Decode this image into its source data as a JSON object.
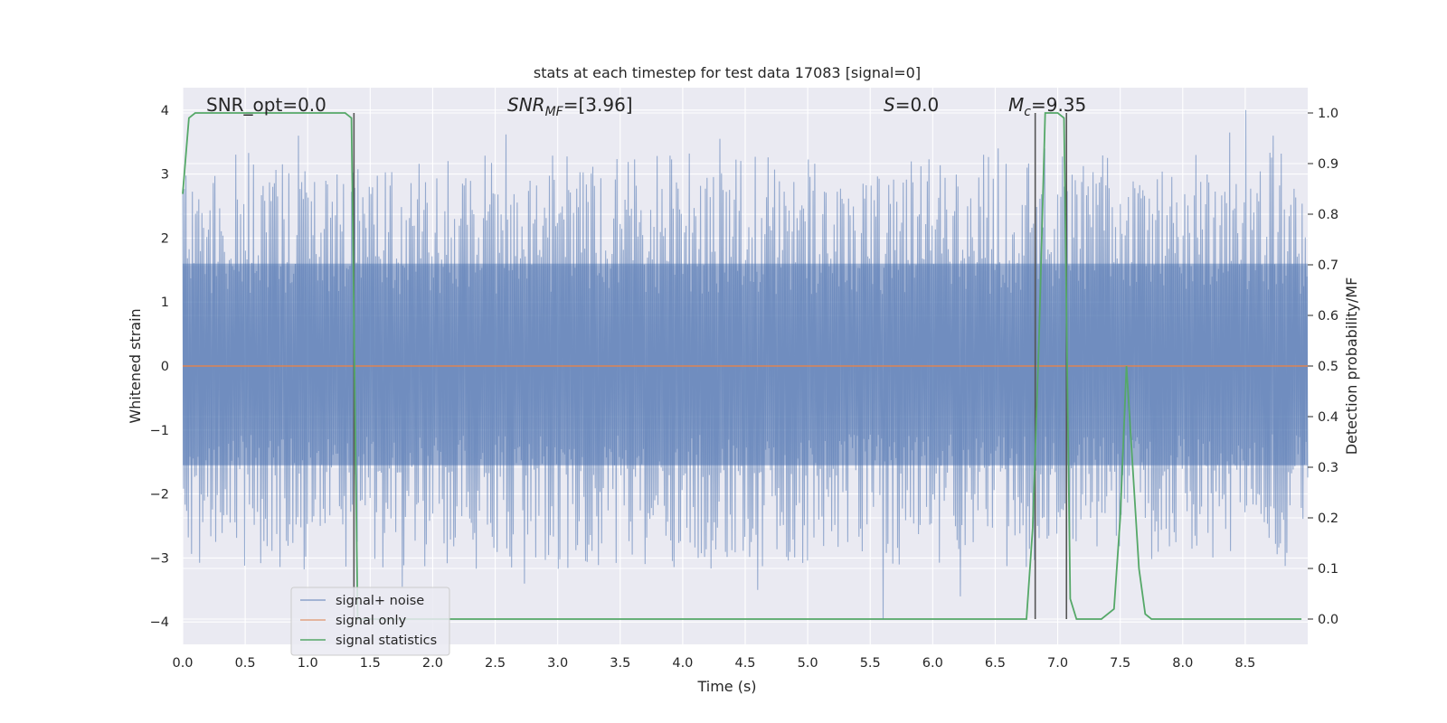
{
  "chart_data": {
    "type": "line",
    "title": "stats at each timestep for test data 17083 [signal=0]",
    "xlabel": "Time (s)",
    "ylabel_left": "Whitened strain",
    "ylabel_right": "Detection probability/MF",
    "xlim": [
      0.0,
      9.0
    ],
    "ylim_left": [
      -4.35,
      4.35
    ],
    "ylim_right": [
      -0.05,
      1.05
    ],
    "x_ticks": [
      "0.0",
      "0.5",
      "1.0",
      "1.5",
      "2.0",
      "2.5",
      "3.0",
      "3.5",
      "4.0",
      "4.5",
      "5.0",
      "5.5",
      "6.0",
      "6.5",
      "7.0",
      "7.5",
      "8.0",
      "8.5"
    ],
    "y_ticks_left": [
      "4",
      "3",
      "2",
      "1",
      "0",
      "−1",
      "−2",
      "−3",
      "−4"
    ],
    "y_ticks_right": [
      "1.0",
      "0.9",
      "0.8",
      "0.7",
      "0.6",
      "0.5",
      "0.4",
      "0.3",
      "0.2",
      "0.1",
      "0.0"
    ],
    "annotations": {
      "snr_opt": "SNR_opt=0.0",
      "snr_mf_main": "SNR",
      "snr_mf_sub": "MF",
      "snr_mf_value": "=[3.96]",
      "s_main": "S",
      "s_value": "=0.0",
      "mc_main": "M",
      "mc_sub": "c",
      "mc_value": "=9.35"
    },
    "legend": {
      "location": "lower-left",
      "entries": [
        "signal+ noise",
        "signal only",
        "signal statistics"
      ]
    },
    "series": [
      {
        "name": "signal+ noise",
        "axis": "left",
        "color": "#4c72b0",
        "description": "whitened strain noise, roughly uniform amplitude",
        "core_band": [
          -1.55,
          1.6
        ],
        "typical_peak_range": [
          2.0,
          3.0
        ],
        "sample_count": 1400,
        "seed": 17083,
        "spikes": [
          [
            0.92,
            3.6
          ],
          [
            2.58,
            3.62
          ],
          [
            4.3,
            3.55
          ],
          [
            5.6,
            -3.95
          ],
          [
            6.52,
            3.4
          ],
          [
            6.9,
            3.4
          ],
          [
            6.75,
            3.1
          ],
          [
            8.5,
            4.0
          ],
          [
            8.38,
            3.65
          ],
          [
            8.72,
            3.6
          ],
          [
            1.75,
            -3.45
          ],
          [
            2.73,
            -3.4
          ],
          [
            4.6,
            -3.5
          ],
          [
            6.22,
            -3.6
          ]
        ]
      },
      {
        "name": "signal only",
        "axis": "left",
        "color": "#dd8452",
        "x": [
          0.0,
          9.0
        ],
        "values": [
          0.0,
          0.0
        ]
      },
      {
        "name": "signal statistics",
        "axis": "right",
        "color": "#55a868",
        "x": [
          0.0,
          0.05,
          0.1,
          0.15,
          0.2,
          0.5,
          1.0,
          1.3,
          1.35,
          1.4,
          1.45,
          1.5,
          2.0,
          3.0,
          4.0,
          5.0,
          6.0,
          6.5,
          6.75,
          6.8,
          6.85,
          6.9,
          6.95,
          7.0,
          7.05,
          7.1,
          7.15,
          7.2,
          7.25,
          7.35,
          7.45,
          7.5,
          7.55,
          7.6,
          7.65,
          7.7,
          7.75,
          7.8,
          7.85,
          7.9,
          8.0,
          8.5,
          8.95
        ],
        "values": [
          0.84,
          0.99,
          1.0,
          1.0,
          1.0,
          1.0,
          1.0,
          1.0,
          0.99,
          0.0,
          0.0,
          0.0,
          0.0,
          0.0,
          0.0,
          0.0,
          0.0,
          0.0,
          0.0,
          0.18,
          0.55,
          1.0,
          1.0,
          1.0,
          0.99,
          0.04,
          0.0,
          0.0,
          0.0,
          0.0,
          0.02,
          0.2,
          0.5,
          0.3,
          0.1,
          0.01,
          0.0,
          0.0,
          0.0,
          0.0,
          0.0,
          0.0,
          0.0
        ]
      }
    ],
    "vertical_markers": {
      "color": "#555555",
      "x": [
        1.37,
        6.82,
        7.07
      ]
    }
  }
}
